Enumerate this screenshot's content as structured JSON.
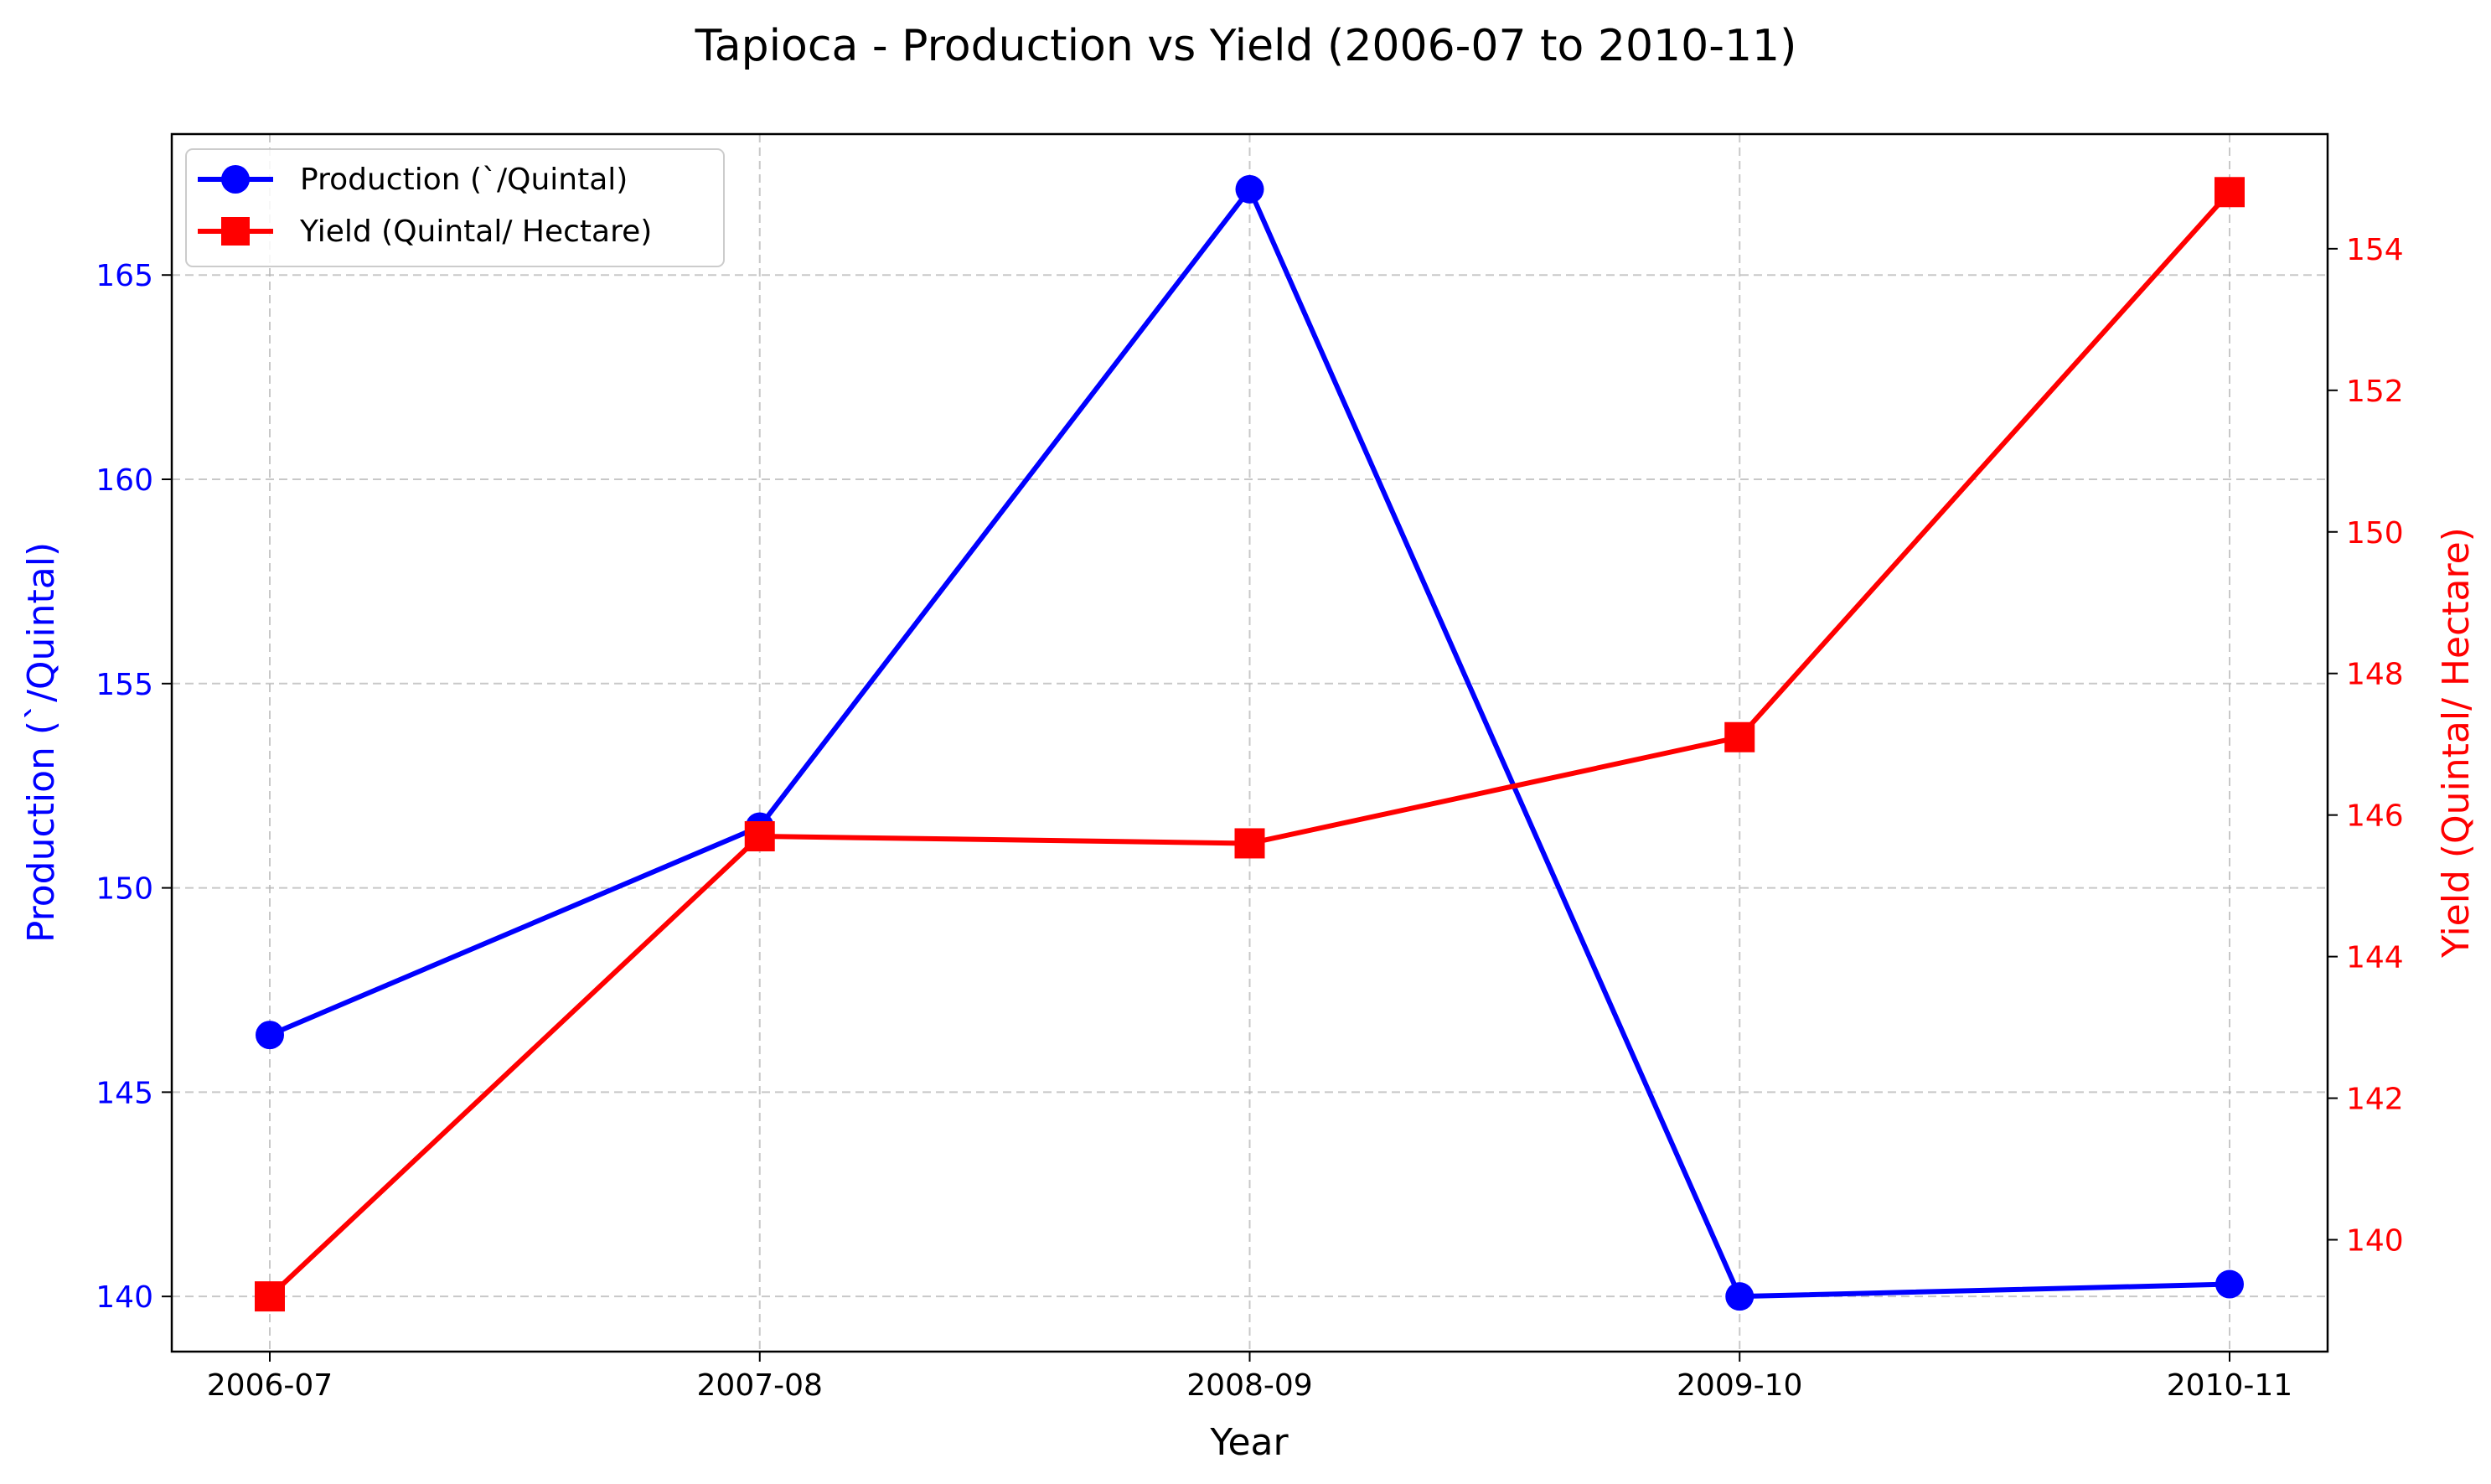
{
  "chart_data": {
    "type": "line",
    "title": "Tapioca - Production vs Yield (2006-07 to 2010-11)",
    "xlabel": "Year",
    "categories": [
      "2006-07",
      "2007-08",
      "2008-09",
      "2009-10",
      "2010-11"
    ],
    "y_left": {
      "label": "Production (`/Quintal)",
      "ticks": [
        140,
        145,
        150,
        155,
        160,
        165
      ],
      "range": [
        138.65,
        168.45
      ],
      "color": "#0000ff"
    },
    "y_right": {
      "label": "Yield (Quintal/ Hectare)",
      "ticks": [
        140,
        142,
        144,
        146,
        148,
        150,
        152,
        154
      ],
      "range": [
        138.42,
        155.62
      ],
      "color": "#ff0000"
    },
    "series": [
      {
        "name": "Production (`/Quintal)",
        "axis": "left",
        "color": "#0000ff",
        "marker": "circle",
        "values": [
          146.4,
          151.5,
          167.1,
          140.0,
          140.3
        ]
      },
      {
        "name": "Yield (Quintal/ Hectare)",
        "axis": "right",
        "color": "#ff0000",
        "marker": "square",
        "values": [
          139.2,
          145.7,
          145.6,
          147.1,
          154.8
        ]
      }
    ],
    "grid": true,
    "legend": "top-left"
  }
}
